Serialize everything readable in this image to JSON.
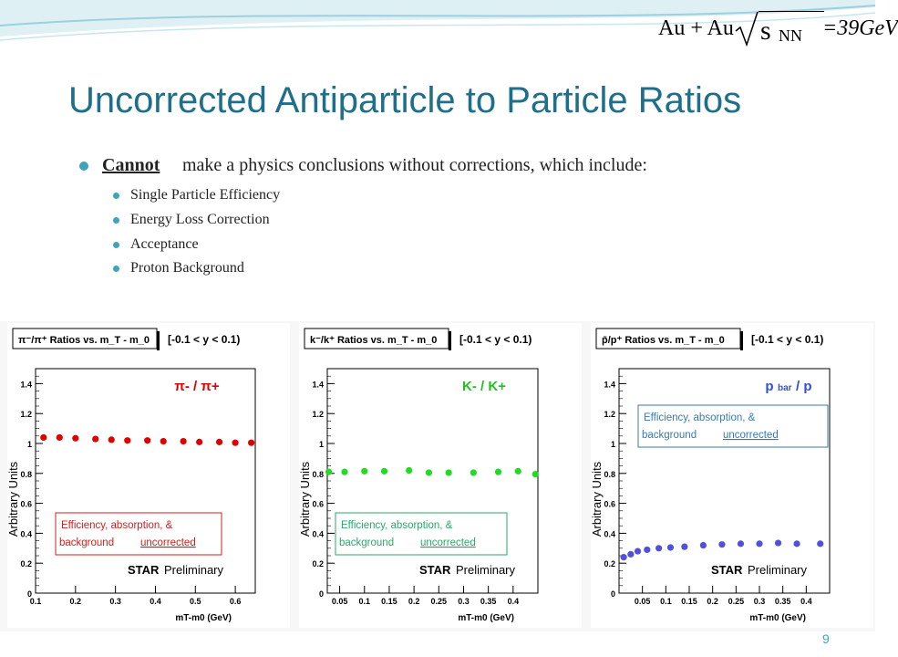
{
  "header": {
    "formula_lhs": "Au + Au",
    "formula_s": "s",
    "formula_sub": "NN",
    "formula_rhs": "=39GeV"
  },
  "slide": {
    "title": "Uncorrected Antiparticle to Particle Ratios",
    "bullet_lead": "Cannot",
    "bullet_rest": "make a physics conclusions without corrections, which include:",
    "sub_bullets": [
      "Single Particle Efficiency",
      "Energy Loss Correction",
      "Acceptance",
      "Proton Background"
    ],
    "page_number": "9"
  },
  "chart_data": [
    {
      "type": "scatter",
      "title": "π⁻/π⁺ Ratios vs. m_T - m_0",
      "rapidity": "[-0.1 < y < 0.1)",
      "label": "π- / π+",
      "xlabel": "mT-m0   (GeV)",
      "ylabel": "Arbitrary Units",
      "xlim": [
        0.1,
        0.65
      ],
      "ylim": [
        0,
        1.5
      ],
      "xticks": [
        "0.1",
        "0.2",
        "0.3",
        "0.4",
        "0.5",
        "0.6"
      ],
      "yticks": [
        "0",
        "0.2",
        "0.4",
        "0.6",
        "0.8",
        "1",
        "1.2",
        "1.4"
      ],
      "x": [
        0.12,
        0.16,
        0.2,
        0.25,
        0.29,
        0.33,
        0.38,
        0.42,
        0.47,
        0.51,
        0.56,
        0.6,
        0.64
      ],
      "y": [
        1.04,
        1.04,
        1.035,
        1.03,
        1.025,
        1.02,
        1.02,
        1.015,
        1.015,
        1.01,
        1.01,
        1.005,
        1.005
      ],
      "color": "#e00000",
      "note_line1": "Efficiency, absorption, &",
      "note_line2_a": "background",
      "note_line2_b": "uncorrected",
      "note_color": "#d02020",
      "brand_bold": "STAR",
      "brand_rest": "Preliminary"
    },
    {
      "type": "scatter",
      "title": "k⁻/k⁺ Ratios vs. m_T - m_0",
      "rapidity": "[-0.1 < y < 0.1)",
      "label": "K- / K+",
      "xlabel": "mT-m0   (GeV)",
      "ylabel": "Arbitrary Units",
      "xlim": [
        0.025,
        0.45
      ],
      "ylim": [
        0,
        1.5
      ],
      "xticks": [
        "0.05",
        "0.1",
        "0.15",
        "0.2",
        "0.25",
        "0.3",
        "0.35",
        "0.4"
      ],
      "yticks": [
        "0",
        "0.2",
        "0.4",
        "0.6",
        "0.8",
        "1",
        "1.2",
        "1.4"
      ],
      "x": [
        0.028,
        0.06,
        0.1,
        0.14,
        0.19,
        0.23,
        0.27,
        0.32,
        0.37,
        0.41,
        0.445
      ],
      "y": [
        0.81,
        0.81,
        0.815,
        0.815,
        0.82,
        0.805,
        0.805,
        0.805,
        0.81,
        0.815,
        0.795
      ],
      "color": "#20dd20",
      "note_line1": "Efficiency, absorption, &",
      "note_line2_a": "background",
      "note_line2_b": "uncorrected",
      "note_color": "#2aa86a",
      "brand_bold": "STAR",
      "brand_rest": "Preliminary"
    },
    {
      "type": "scatter",
      "title": "p̄/p⁺ Ratios vs. m_T - m_0",
      "rapidity": "[-0.1 < y < 0.1)",
      "label": "p",
      "label_sub": "bar",
      "label_tail": "/ p",
      "xlabel": "mT-m0   (GeV)",
      "ylabel": "Arbitrary Units",
      "xlim": [
        0.0,
        0.45
      ],
      "ylim": [
        0,
        1.5
      ],
      "xticks": [
        "0.05",
        "0.1",
        "0.15",
        "0.2",
        "0.25",
        "0.3",
        "0.35",
        "0.4"
      ],
      "yticks": [
        "0",
        "0.2",
        "0.4",
        "0.6",
        "0.8",
        "1",
        "1.2",
        "1.4"
      ],
      "x": [
        0.01,
        0.025,
        0.04,
        0.06,
        0.085,
        0.11,
        0.14,
        0.18,
        0.22,
        0.26,
        0.3,
        0.34,
        0.38,
        0.43
      ],
      "y": [
        0.24,
        0.26,
        0.28,
        0.29,
        0.3,
        0.305,
        0.31,
        0.32,
        0.325,
        0.33,
        0.33,
        0.335,
        0.33,
        0.33
      ],
      "color": "#5050dd",
      "note_line1": "Efficiency, absorption, &",
      "note_line2_a": "background",
      "note_line2_b": "uncorrected",
      "note_color": "#3a7ab0",
      "brand_bold": "STAR",
      "brand_rest": "Preliminary"
    }
  ]
}
